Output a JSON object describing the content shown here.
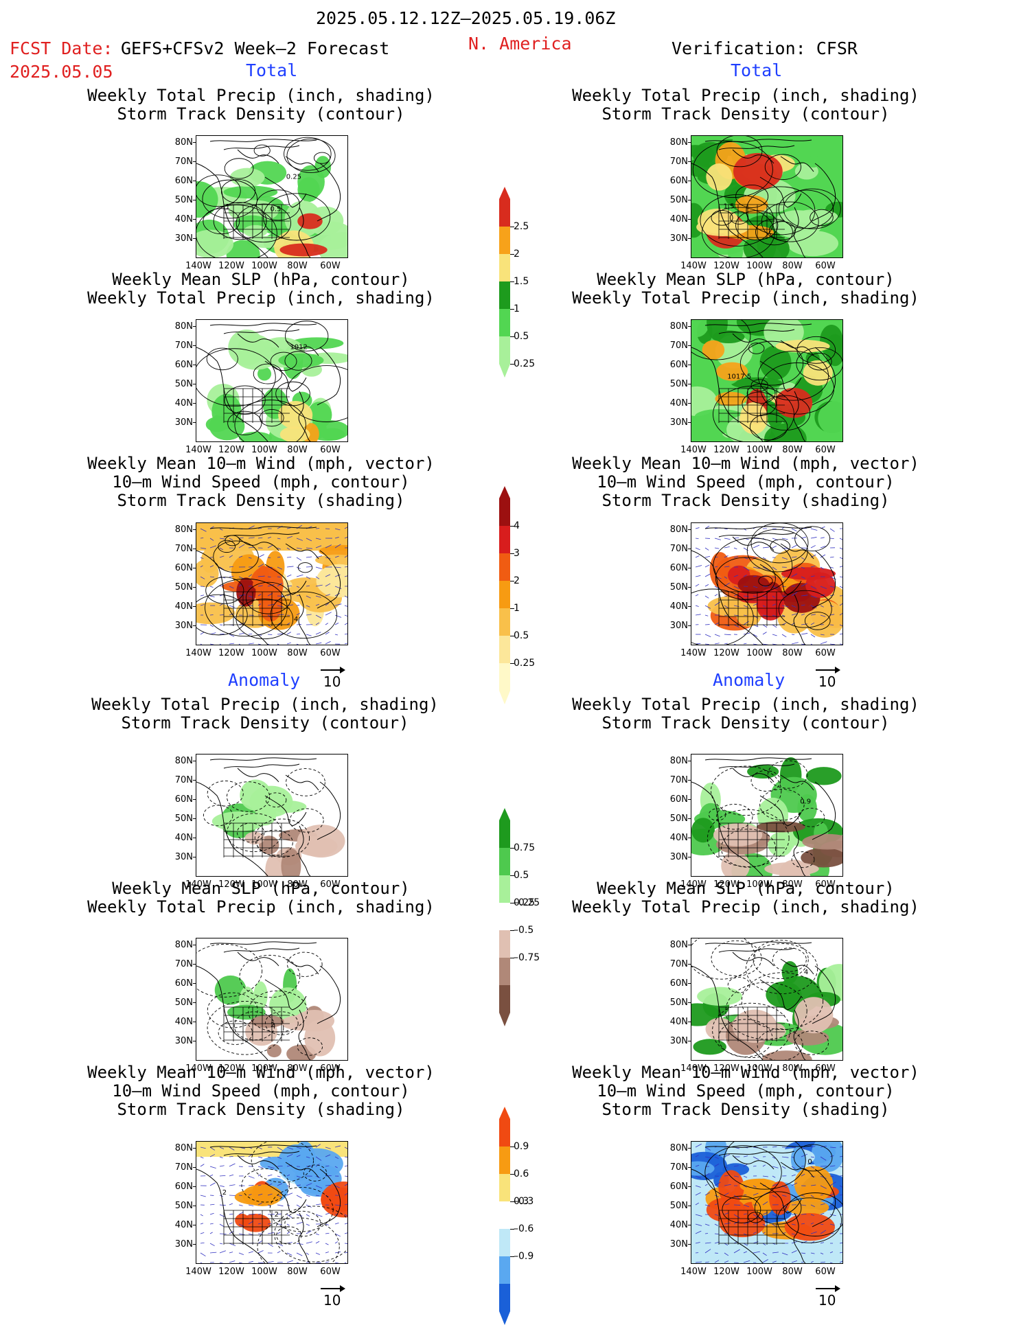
{
  "header": {
    "period": "2025.05.12.12Z–2025.05.19.06Z",
    "fcst_label": "FCST Date:",
    "fcst_date": "2025.05.05",
    "forecast_name": "GEFS+CFSv2 Week–2 Forecast",
    "region": "N. America",
    "verification": "Verification: CFSR"
  },
  "sections": {
    "total_label": "Total",
    "anomaly_label": "Anomaly"
  },
  "titles": {
    "precip_storm": [
      "Weekly Total Precip (inch, shading)",
      "Storm Track Density (contour)"
    ],
    "slp_precip": [
      "Weekly Mean SLP (hPa, contour)",
      "Weekly Total Precip (inch, shading)"
    ],
    "wind_storm": [
      "Weekly Mean 10–m Wind (mph, vector)",
      "10–m Wind Speed (mph, contour)",
      "Storm Track Density (shading)"
    ]
  },
  "axes": {
    "lat_labels": [
      "80N",
      "70N",
      "60N",
      "50N",
      "40N",
      "30N"
    ],
    "lon_labels": [
      "140W",
      "120W",
      "100W",
      "80W",
      "60W"
    ]
  },
  "vector_reference": "10",
  "contour_labels": {
    "fcst_precip_total": [
      "0.25",
      "0.5",
      "1"
    ],
    "fcst_slp_total": [
      "1012"
    ],
    "fcst_wind_total": [
      "4"
    ],
    "verif_precip_total": [
      "1.5"
    ],
    "verif_slp_total": [
      "1017.5"
    ],
    "verif_precip_anom": [
      "0.9"
    ],
    "fcst_slp_anom": [
      "2"
    ],
    "verif_slp_anom": [
      "4"
    ],
    "fcst_wind_anom": [
      "2",
      "2"
    ],
    "verif_wind_anom": [
      "0"
    ]
  },
  "colorbars": {
    "precip_total": {
      "labels": [
        "2.5",
        "2",
        "1.5",
        "1",
        "0.5",
        "0.25"
      ],
      "colors": [
        "#d82c1e",
        "#f7a21a",
        "#f9e37a",
        "#1d9b1d",
        "#52d652",
        "#a8f09a"
      ]
    },
    "storm_total": {
      "labels": [
        "4",
        "3",
        "2",
        "1",
        "0.5",
        "0.25"
      ],
      "colors": [
        "#9c1010",
        "#d81d1d",
        "#f05c12",
        "#f79b12",
        "#f9c04a",
        "#fce79a",
        "#fff9c8"
      ]
    },
    "precip_anom": {
      "labels": [
        "0.75",
        "0.5",
        "0.25",
        "–0.25",
        "–0.5",
        "–0.75"
      ],
      "colors": [
        "#1e9a1e",
        "#4ec94e",
        "#a8f09a",
        "#ffffff",
        "#e0c0b2",
        "#b08878",
        "#7a5040"
      ]
    },
    "storm_anom": {
      "labels": [
        "0.9",
        "0.6",
        "0.3",
        "–0.3",
        "–0.6",
        "–0.9"
      ],
      "colors": [
        "#f04a12",
        "#f79b12",
        "#f9e37a",
        "#ffffff",
        "#bfe8f7",
        "#5aa8f0",
        "#1a60d8"
      ]
    }
  }
}
